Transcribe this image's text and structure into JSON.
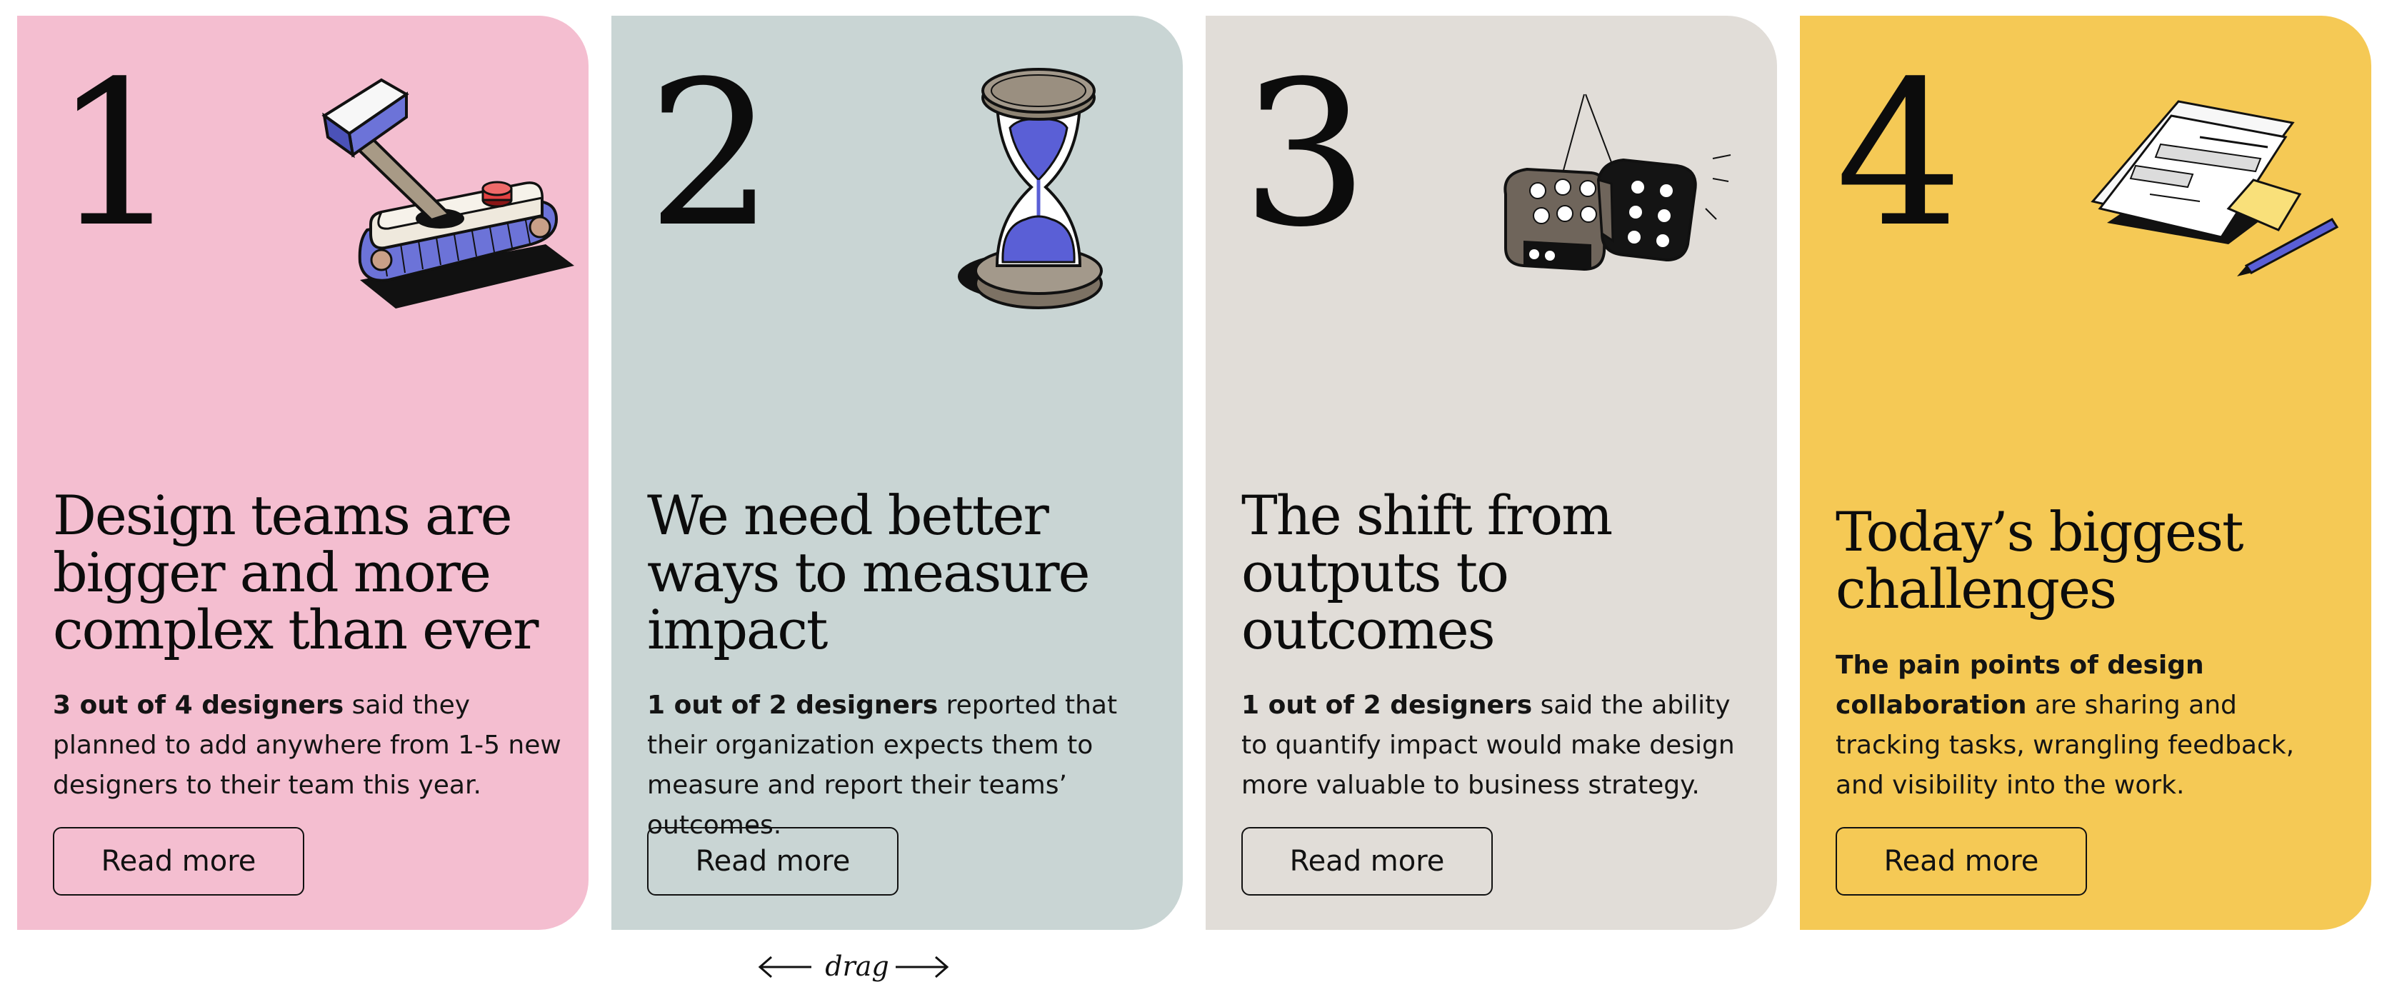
{
  "cards": [
    {
      "number": "1",
      "color": "#f4bed0",
      "illustration": "joystick-illustration",
      "title": "Design teams are bigger and more complex than ever",
      "desc_bold": "3 out of 4 designers",
      "desc_rest": " said they planned to add anywhere from 1-5 new designers to their team this year.",
      "button": "Read more"
    },
    {
      "number": "2",
      "color": "#c9d5d4",
      "illustration": "hourglass-illustration",
      "title": "We need better ways to measure impact",
      "desc_bold": "1 out of 2 designers",
      "desc_rest": " reported that their organization expects them to measure and report their teams’ outcomes.",
      "button": "Read more"
    },
    {
      "number": "3",
      "color": "#e1ddd8",
      "illustration": "dice-illustration",
      "title": "The shift from outputs to outcomes",
      "desc_bold": "1 out of 2 designers",
      "desc_rest": " said the ability to quantify impact would make design more valuable to business strategy.",
      "button": "Read more"
    },
    {
      "number": "4",
      "color": "#f5c955",
      "illustration": "documents-illustration",
      "title": "Today’s biggest challenges",
      "desc_bold": "The pain points of design collaboration",
      "desc_rest": " are sharing and tracking tasks, wrangling feedback, and visibility into the work.",
      "button": "Read more"
    }
  ],
  "drag_hint": {
    "label": "drag"
  }
}
